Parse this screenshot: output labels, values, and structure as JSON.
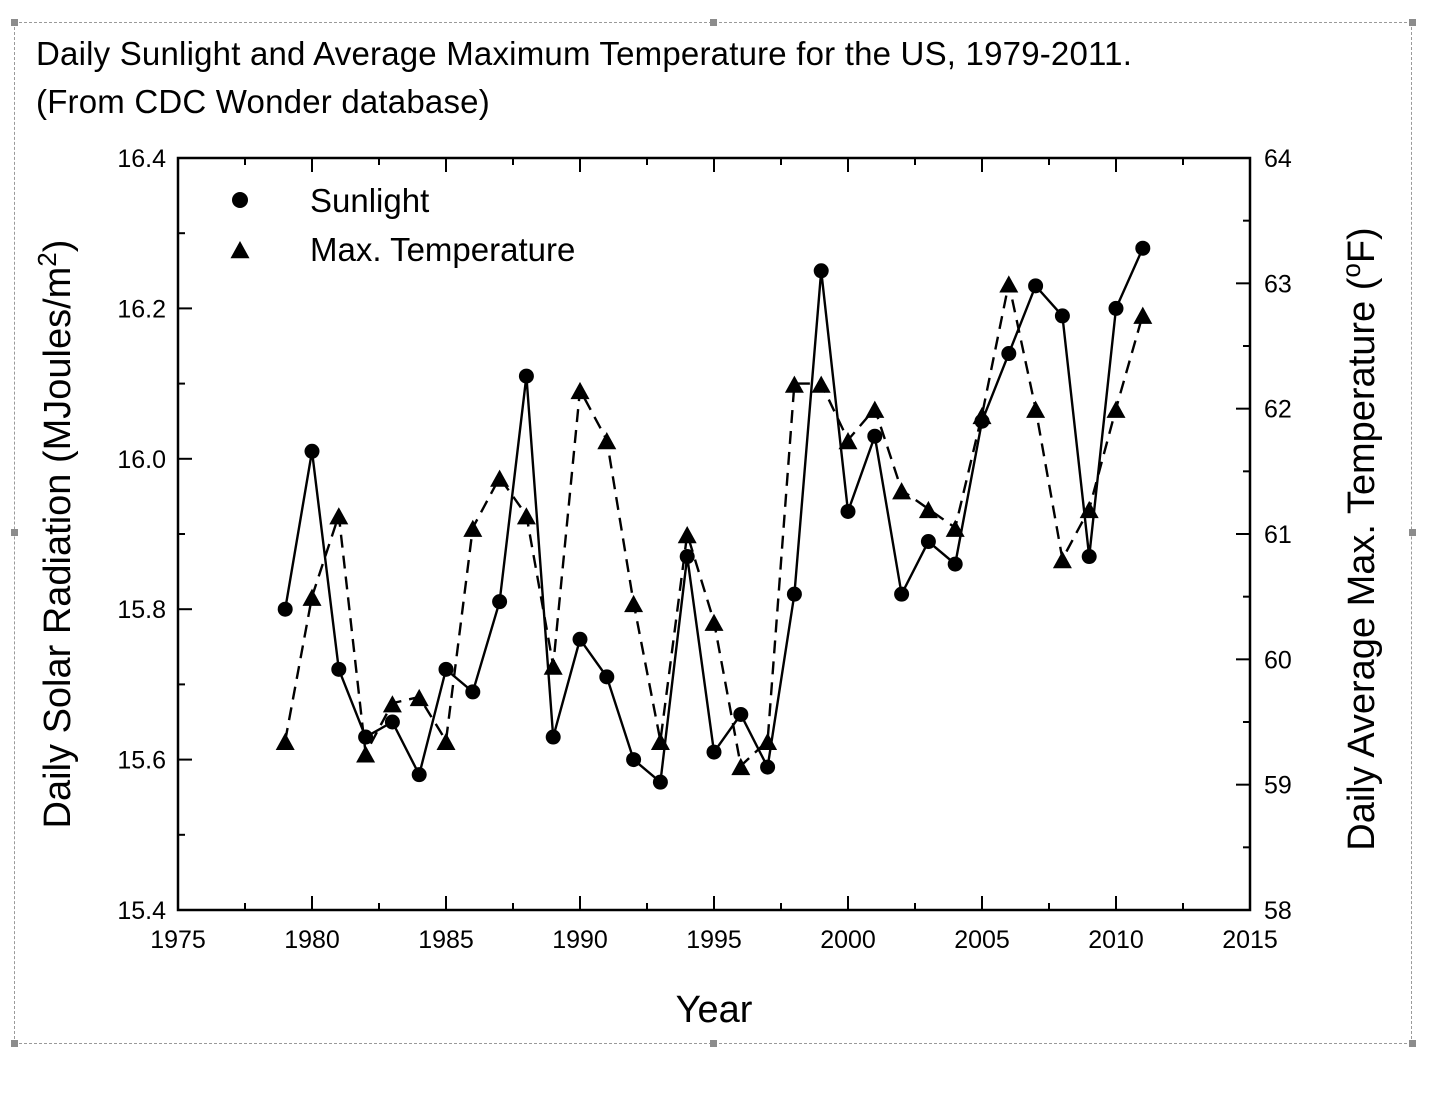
{
  "chart_data": {
    "type": "line",
    "title": "Daily Sunlight and Average Maximum Temperature for the US, 1979-2011.",
    "subtitle": "(From CDC Wonder database)",
    "xlabel": "Year",
    "ylabel_left": {
      "text": "Daily Solar Radiation (MJoules/m",
      "superscript": "2",
      "suffix": ")"
    },
    "ylabel_right": {
      "text": "Daily Average Max. Temperature (",
      "superscript": "o",
      "suffix": "F)"
    },
    "xlim": [
      1975,
      2015
    ],
    "ylim_left": [
      15.4,
      16.4
    ],
    "ylim_right": [
      58,
      64
    ],
    "x_ticks": [
      "1975",
      "1980",
      "1985",
      "1990",
      "1995",
      "2000",
      "2005",
      "2010",
      "2015"
    ],
    "y_ticks_left": [
      "15.4",
      "15.6",
      "15.8",
      "16.0",
      "16.2",
      "16.4"
    ],
    "y_ticks_right": [
      "58",
      "59",
      "60",
      "61",
      "62",
      "63",
      "64"
    ],
    "grid": false,
    "legend_position": "top-left",
    "x": [
      1979,
      1980,
      1981,
      1982,
      1983,
      1984,
      1985,
      1986,
      1987,
      1988,
      1989,
      1990,
      1991,
      1992,
      1993,
      1994,
      1995,
      1996,
      1997,
      1998,
      1999,
      2000,
      2001,
      2002,
      2003,
      2004,
      2005,
      2006,
      2007,
      2008,
      2009,
      2010,
      2011
    ],
    "series": [
      {
        "name": "Sunlight",
        "axis": "left",
        "marker": "circle",
        "line": "solid",
        "values": [
          15.8,
          16.01,
          15.72,
          15.63,
          15.65,
          15.58,
          15.72,
          15.69,
          15.81,
          16.11,
          15.63,
          15.76,
          15.71,
          15.6,
          15.57,
          15.87,
          15.61,
          15.66,
          15.59,
          15.82,
          16.25,
          15.93,
          16.03,
          15.82,
          15.89,
          15.86,
          16.05,
          16.14,
          16.23,
          16.19,
          15.87,
          16.2,
          16.28
        ]
      },
      {
        "name": "Max. Temperature",
        "axis": "right",
        "marker": "triangle",
        "line": "dashed",
        "values": [
          59.35,
          60.5,
          61.15,
          59.25,
          59.65,
          59.7,
          59.35,
          61.05,
          61.45,
          61.15,
          59.95,
          62.15,
          61.75,
          60.45,
          59.35,
          61.0,
          60.3,
          59.15,
          59.35,
          62.2,
          62.2,
          61.75,
          62.0,
          61.35,
          61.2,
          61.05,
          61.95,
          63.0,
          62.0,
          60.8,
          61.2,
          62.0,
          62.75
        ]
      }
    ]
  }
}
